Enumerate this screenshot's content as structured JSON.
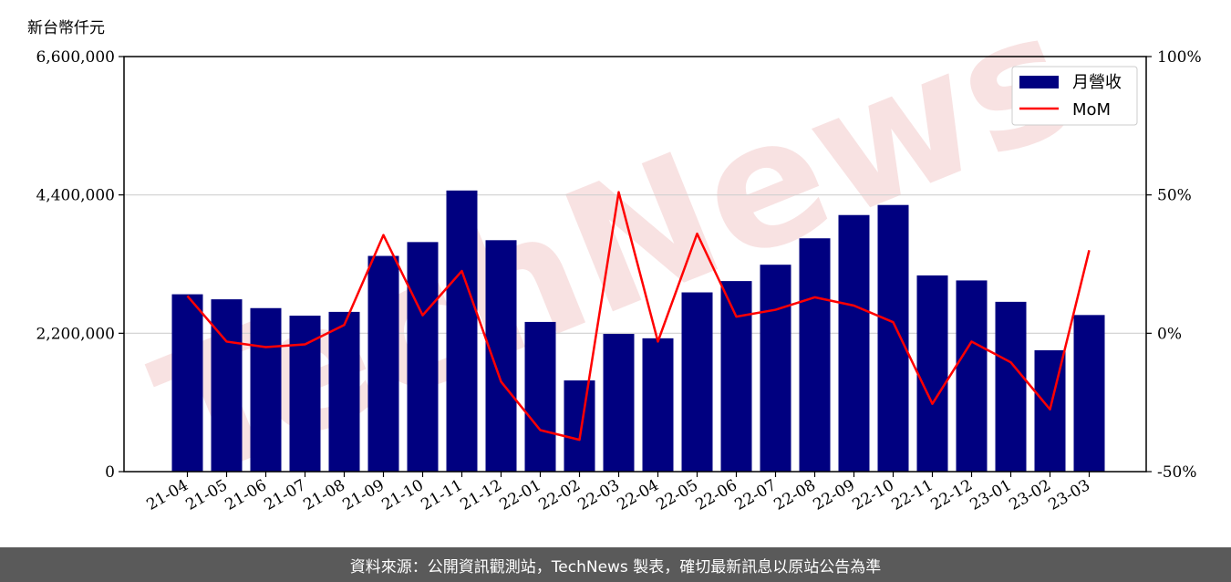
{
  "unit_label": "新台幣仟元",
  "footer_text": "資料來源：公開資訊觀測站，TechNews 製表，確切最新訊息以原站公告為準",
  "watermark_text": "TechNews",
  "colors": {
    "bar": "#000080",
    "line": "#ff0000",
    "grid": "#d0d0d0",
    "footer_bg": "#5a5a5a"
  },
  "chart_data": {
    "type": "bar",
    "categories": [
      "21-04",
      "21-05",
      "21-06",
      "21-07",
      "21-08",
      "21-09",
      "21-10",
      "21-11",
      "21-12",
      "22-01",
      "22-02",
      "22-03",
      "22-04",
      "22-05",
      "22-06",
      "22-07",
      "22-08",
      "22-09",
      "22-10",
      "22-11",
      "22-12",
      "23-01",
      "23-02",
      "23-03"
    ],
    "series": [
      {
        "name": "月營收",
        "type": "bar",
        "axis": "left",
        "values": [
          2820000,
          2740000,
          2600000,
          2480000,
          2540000,
          3430000,
          3650000,
          4470000,
          3680000,
          2380000,
          1450000,
          2190000,
          2120000,
          2850000,
          3030000,
          3290000,
          3710000,
          4080000,
          4240000,
          3120000,
          3040000,
          2700000,
          1930000,
          2490000
        ]
      },
      {
        "name": "MoM",
        "type": "line",
        "axis": "right",
        "values": [
          13.5,
          -3,
          -5,
          -4,
          3,
          35.5,
          6.5,
          22.5,
          -17.5,
          -35,
          -38.5,
          51,
          -3,
          36,
          6,
          8.5,
          13,
          10,
          4,
          -25.5,
          -3,
          -10.5,
          -27.5,
          30
        ]
      }
    ],
    "y_left": {
      "ylim": [
        0,
        6600000
      ],
      "ticks": [
        0,
        2200000,
        4400000,
        6600000
      ],
      "tick_labels": [
        "0",
        "2,200,000",
        "4,400,000",
        "6,600,000"
      ]
    },
    "y_right": {
      "ylim": [
        -50,
        100
      ],
      "ticks": [
        -50,
        0,
        50,
        100
      ],
      "tick_labels": [
        "-50%",
        "0%",
        "50%",
        "100%"
      ]
    },
    "grid": "horizontal",
    "legend_position": "top-right"
  }
}
